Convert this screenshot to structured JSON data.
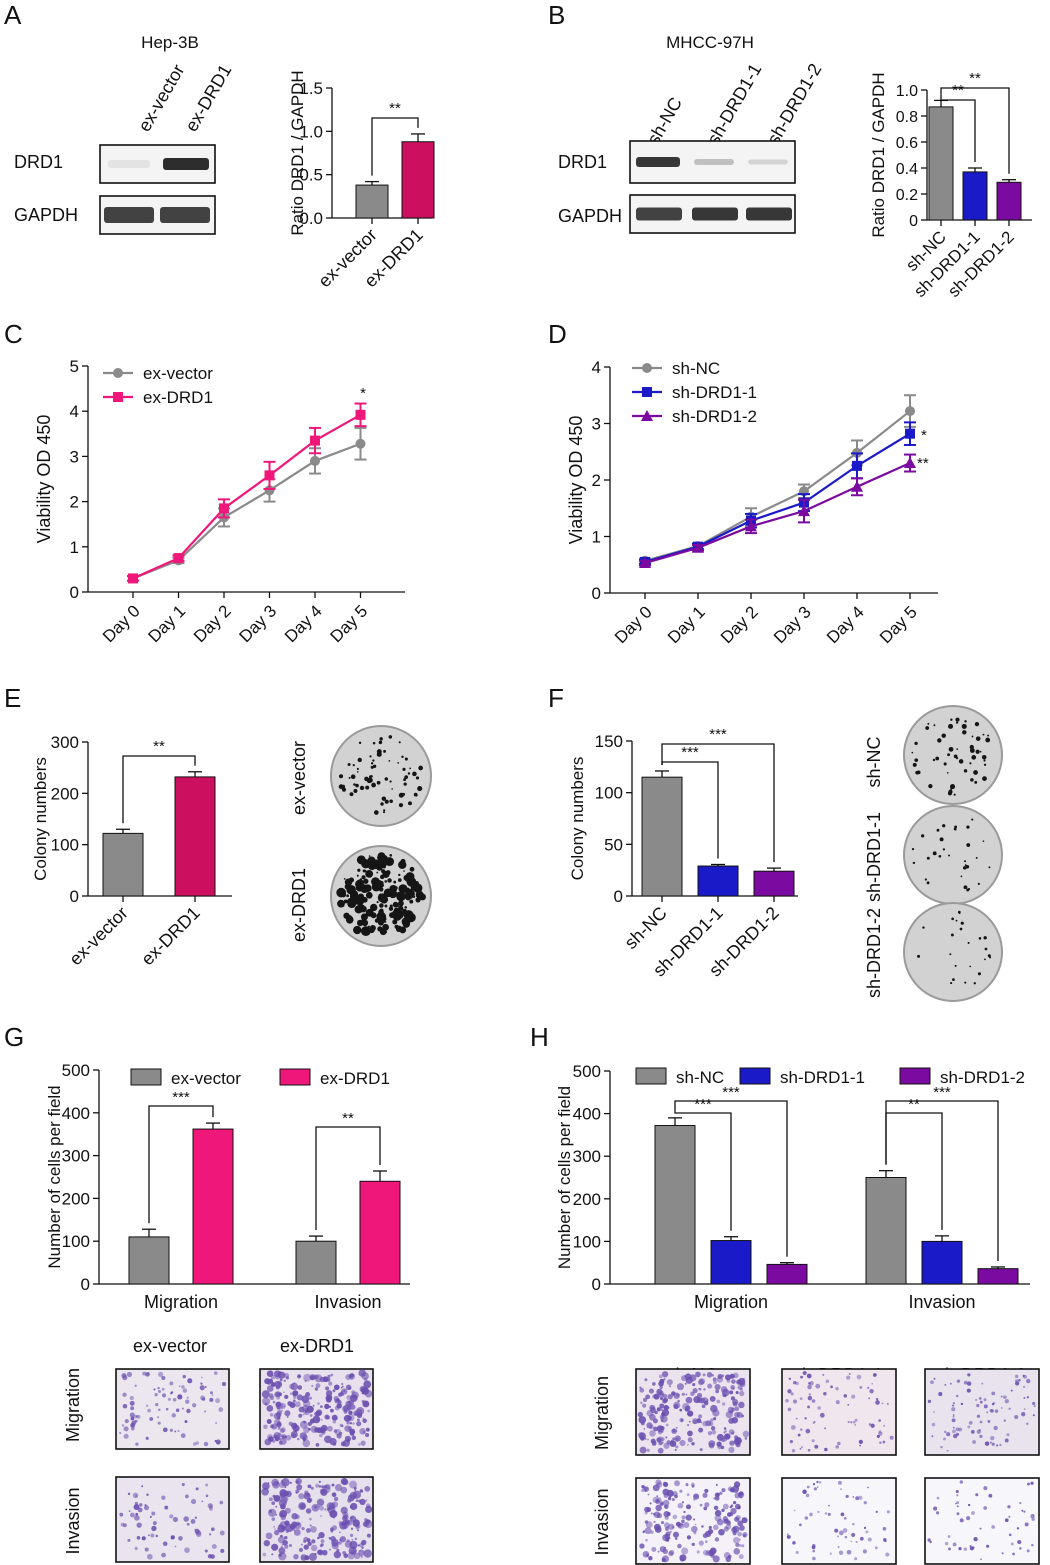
{
  "colors": {
    "gray": "#8a8a8a",
    "crimson": "#cc0f5e",
    "pink": "#f0177a",
    "blue": "#1a1ac8",
    "purple": "#7a0aa0",
    "crystal": "#6a4fb0"
  },
  "panels": {
    "A": {
      "letter": "A",
      "cell_line": "Hep-3B",
      "blot": {
        "lanes": [
          "ex-vector",
          "ex-DRD1"
        ],
        "rows": [
          "DRD1",
          "GAPDH"
        ]
      },
      "chart": {
        "type": "bar",
        "ylabel": "Ratio DRD1 / GAPDH",
        "ylim": [
          0,
          1.5
        ],
        "yticks": [
          "0.0",
          "0.5",
          "1.0",
          "1.5"
        ],
        "categories": [
          "ex-vector",
          "ex-DRD1"
        ],
        "values": [
          0.38,
          0.88
        ],
        "errors": [
          0.04,
          0.09
        ],
        "sig": [
          {
            "from": 0,
            "to": 1,
            "label": "**"
          }
        ]
      }
    },
    "B": {
      "letter": "B",
      "cell_line": "MHCC-97H",
      "blot": {
        "lanes": [
          "sh-NC",
          "sh-DRD1-1",
          "sh-DRD1-2"
        ],
        "rows": [
          "DRD1",
          "GAPDH"
        ]
      },
      "chart": {
        "type": "bar",
        "ylabel": "Ratio DRD1 / GAPDH",
        "ylim": [
          0,
          1.0
        ],
        "yticks": [
          "0",
          "0.2",
          "0.4",
          "0.6",
          "0.8",
          "1.0"
        ],
        "categories": [
          "sh-NC",
          "sh-DRD1-1",
          "sh-DRD1-2"
        ],
        "values": [
          0.87,
          0.37,
          0.29
        ],
        "errors": [
          0.05,
          0.03,
          0.02
        ],
        "sig": [
          {
            "from": 0,
            "to": 1,
            "label": "**"
          },
          {
            "from": 0,
            "to": 2,
            "label": "**"
          }
        ]
      }
    },
    "C": {
      "letter": "C",
      "chart": {
        "type": "line",
        "ylabel": "Viability OD 450",
        "ylim": [
          0,
          5
        ],
        "yticks": [
          "0",
          "1",
          "2",
          "3",
          "4",
          "5"
        ],
        "x": [
          "Day 0",
          "Day 1",
          "Day 2",
          "Day 3",
          "Day 4",
          "Day 5"
        ],
        "series": [
          {
            "name": "ex-vector",
            "values": [
              0.3,
              0.7,
              1.65,
              2.25,
              2.9,
              3.28
            ],
            "errors": [
              0.05,
              0.06,
              0.2,
              0.25,
              0.28,
              0.35
            ]
          },
          {
            "name": "ex-DRD1",
            "values": [
              0.3,
              0.75,
              1.85,
              2.58,
              3.35,
              3.92
            ],
            "errors": [
              0.05,
              0.06,
              0.2,
              0.3,
              0.28,
              0.25
            ]
          }
        ],
        "annotations": [
          {
            "x": "Day 5",
            "label": "*"
          }
        ]
      }
    },
    "D": {
      "letter": "D",
      "chart": {
        "type": "line",
        "ylabel": "Viability OD 450",
        "ylim": [
          0,
          4
        ],
        "yticks": [
          "0",
          "1",
          "2",
          "3",
          "4"
        ],
        "x": [
          "Day 0",
          "Day 1",
          "Day 2",
          "Day 3",
          "Day 4",
          "Day 5"
        ],
        "series": [
          {
            "name": "sh-NC",
            "values": [
              0.57,
              0.83,
              1.35,
              1.8,
              2.48,
              3.22
            ],
            "errors": [
              0.04,
              0.05,
              0.15,
              0.12,
              0.22,
              0.28
            ]
          },
          {
            "name": "sh-DRD1-1",
            "values": [
              0.55,
              0.82,
              1.28,
              1.6,
              2.25,
              2.82
            ],
            "errors": [
              0.04,
              0.05,
              0.12,
              0.15,
              0.22,
              0.2
            ]
          },
          {
            "name": "sh-DRD1-2",
            "values": [
              0.53,
              0.8,
              1.18,
              1.45,
              1.88,
              2.3
            ],
            "errors": [
              0.04,
              0.05,
              0.12,
              0.2,
              0.15,
              0.15
            ]
          }
        ],
        "annotations": [
          {
            "x": "Day 5",
            "series": "sh-DRD1-1",
            "label": "*"
          },
          {
            "x": "Day 5",
            "series": "sh-DRD1-2",
            "label": "**"
          }
        ]
      }
    },
    "E": {
      "letter": "E",
      "chart": {
        "type": "bar",
        "ylabel": "Colony numbers",
        "ylim": [
          0,
          300
        ],
        "yticks": [
          "0",
          "100",
          "200",
          "300"
        ],
        "categories": [
          "ex-vector",
          "ex-DRD1"
        ],
        "values": [
          122,
          232
        ],
        "errors": [
          8,
          10
        ],
        "sig": [
          {
            "from": 0,
            "to": 1,
            "label": "**"
          }
        ]
      },
      "dish_labels": [
        "ex-vector",
        "ex-DRD1"
      ]
    },
    "F": {
      "letter": "F",
      "chart": {
        "type": "bar",
        "ylabel": "Colony numbers",
        "ylim": [
          0,
          150
        ],
        "yticks": [
          "0",
          "50",
          "100",
          "150"
        ],
        "categories": [
          "sh-NC",
          "sh-DRD1-1",
          "sh-DRD1-2"
        ],
        "values": [
          115,
          29,
          24
        ],
        "errors": [
          6,
          1.5,
          3
        ],
        "sig": [
          {
            "from": 0,
            "to": 1,
            "label": "***"
          },
          {
            "from": 0,
            "to": 2,
            "label": "***"
          }
        ]
      },
      "dish_labels": [
        "sh-NC",
        "sh-DRD1-1",
        "sh-DRD1-2"
      ]
    },
    "G": {
      "letter": "G",
      "chart": {
        "type": "bar",
        "ylabel": "Number of cells per field",
        "ylim": [
          0,
          500
        ],
        "yticks": [
          "0",
          "100",
          "200",
          "300",
          "400",
          "500"
        ],
        "categories": [
          "Migration",
          "Invasion"
        ],
        "series": [
          {
            "name": "ex-vector",
            "values": [
              110,
              100
            ],
            "errors": [
              18,
              12
            ]
          },
          {
            "name": "ex-DRD1",
            "values": [
              362,
              240
            ],
            "errors": [
              14,
              24
            ]
          }
        ],
        "sig": [
          {
            "group": 0,
            "from": 0,
            "to": 1,
            "label": "***"
          },
          {
            "group": 1,
            "from": 0,
            "to": 1,
            "label": "**"
          }
        ]
      },
      "micro": {
        "cols": [
          "ex-vector",
          "ex-DRD1"
        ],
        "rows": [
          "Migration",
          "Invasion"
        ]
      }
    },
    "H": {
      "letter": "H",
      "chart": {
        "type": "bar",
        "ylabel": "Number of cells per field",
        "ylim": [
          0,
          500
        ],
        "yticks": [
          "0",
          "100",
          "200",
          "300",
          "400",
          "500"
        ],
        "categories": [
          "Migration",
          "Invasion"
        ],
        "series": [
          {
            "name": "sh-NC",
            "values": [
              372,
              250
            ],
            "errors": [
              18,
              16
            ]
          },
          {
            "name": "sh-DRD1-1",
            "values": [
              102,
              100
            ],
            "errors": [
              9,
              13
            ]
          },
          {
            "name": "sh-DRD1-2",
            "values": [
              46,
              36
            ],
            "errors": [
              4,
              4
            ]
          }
        ],
        "sig": [
          {
            "group": 0,
            "from": 0,
            "to": 1,
            "label": "***"
          },
          {
            "group": 0,
            "from": 0,
            "to": 2,
            "label": "***"
          },
          {
            "group": 1,
            "from": 0,
            "to": 1,
            "label": "**"
          },
          {
            "group": 1,
            "from": 0,
            "to": 2,
            "label": "***"
          }
        ]
      },
      "micro": {
        "cols": [
          "sh-NC",
          "sh-DRD1-1",
          "sh-DRD1-2"
        ],
        "rows": [
          "Migration",
          "Invasion"
        ]
      }
    }
  },
  "chart_data": [
    {
      "type": "bar",
      "title": "Hep-3B",
      "ylabel": "Ratio DRD1 / GAPDH",
      "categories": [
        "ex-vector",
        "ex-DRD1"
      ],
      "values": [
        0.38,
        0.88
      ],
      "ylim": [
        0,
        1.5
      ]
    },
    {
      "type": "bar",
      "title": "MHCC-97H",
      "ylabel": "Ratio DRD1 / GAPDH",
      "categories": [
        "sh-NC",
        "sh-DRD1-1",
        "sh-DRD1-2"
      ],
      "values": [
        0.87,
        0.37,
        0.29
      ],
      "ylim": [
        0,
        1.0
      ]
    },
    {
      "type": "line",
      "ylabel": "Viability OD 450",
      "x": [
        "Day 0",
        "Day 1",
        "Day 2",
        "Day 3",
        "Day 4",
        "Day 5"
      ],
      "ylim": [
        0,
        5
      ],
      "series": [
        {
          "name": "ex-vector",
          "values": [
            0.3,
            0.7,
            1.65,
            2.25,
            2.9,
            3.28
          ]
        },
        {
          "name": "ex-DRD1",
          "values": [
            0.3,
            0.75,
            1.85,
            2.58,
            3.35,
            3.92
          ]
        }
      ]
    },
    {
      "type": "line",
      "ylabel": "Viability OD 450",
      "x": [
        "Day 0",
        "Day 1",
        "Day 2",
        "Day 3",
        "Day 4",
        "Day 5"
      ],
      "ylim": [
        0,
        4
      ],
      "series": [
        {
          "name": "sh-NC",
          "values": [
            0.57,
            0.83,
            1.35,
            1.8,
            2.48,
            3.22
          ]
        },
        {
          "name": "sh-DRD1-1",
          "values": [
            0.55,
            0.82,
            1.28,
            1.6,
            2.25,
            2.82
          ]
        },
        {
          "name": "sh-DRD1-2",
          "values": [
            0.53,
            0.8,
            1.18,
            1.45,
            1.88,
            2.3
          ]
        }
      ]
    },
    {
      "type": "bar",
      "ylabel": "Colony numbers",
      "categories": [
        "ex-vector",
        "ex-DRD1"
      ],
      "values": [
        122,
        232
      ],
      "ylim": [
        0,
        300
      ]
    },
    {
      "type": "bar",
      "ylabel": "Colony numbers",
      "categories": [
        "sh-NC",
        "sh-DRD1-1",
        "sh-DRD1-2"
      ],
      "values": [
        115,
        29,
        24
      ],
      "ylim": [
        0,
        150
      ]
    },
    {
      "type": "bar",
      "ylabel": "Number of cells per field",
      "categories": [
        "Migration",
        "Invasion"
      ],
      "ylim": [
        0,
        500
      ],
      "series": [
        {
          "name": "ex-vector",
          "values": [
            110,
            100
          ]
        },
        {
          "name": "ex-DRD1",
          "values": [
            362,
            240
          ]
        }
      ]
    },
    {
      "type": "bar",
      "ylabel": "Number of cells per field",
      "categories": [
        "Migration",
        "Invasion"
      ],
      "ylim": [
        0,
        500
      ],
      "series": [
        {
          "name": "sh-NC",
          "values": [
            372,
            250
          ]
        },
        {
          "name": "sh-DRD1-1",
          "values": [
            102,
            100
          ]
        },
        {
          "name": "sh-DRD1-2",
          "values": [
            46,
            36
          ]
        }
      ]
    }
  ]
}
